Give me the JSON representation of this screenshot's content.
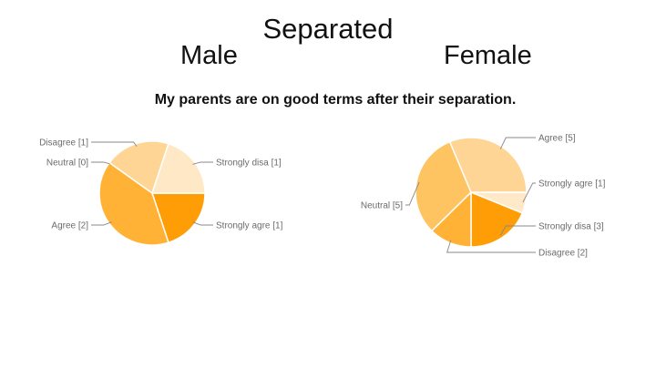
{
  "slide": {
    "title": "Separated",
    "male_label": "Male",
    "female_label": "Female",
    "question": "My parents are on good terms after their separation."
  },
  "chart_data": [
    {
      "type": "pie",
      "group": "Male",
      "slices": [
        {
          "label": "Strongly agre [1]",
          "category": "Strongly agre",
          "value": 1,
          "color": "#ff9d06"
        },
        {
          "label": "Agree [2]",
          "category": "Agree",
          "value": 2,
          "color": "#ffb235"
        },
        {
          "label": "Neutral [0]",
          "category": "Neutral",
          "value": 0,
          "color": "#ffc462"
        },
        {
          "label": "Disagree [1]",
          "category": "Disagree",
          "value": 1,
          "color": "#ffd596"
        },
        {
          "label": "Strongly disa [1]",
          "category": "Strongly disa",
          "value": 1,
          "color": "#ffe8c6"
        }
      ]
    },
    {
      "type": "pie",
      "group": "Female",
      "slices": [
        {
          "label": "Strongly agre [1]",
          "category": "Strongly agre",
          "value": 1,
          "color": "#ffe9c8"
        },
        {
          "label": "Strongly disa [3]",
          "category": "Strongly disa",
          "value": 3,
          "color": "#ff9d06"
        },
        {
          "label": "Disagree [2]",
          "category": "Disagree",
          "value": 2,
          "color": "#ffb235"
        },
        {
          "label": "Neutral [5]",
          "category": "Neutral",
          "value": 5,
          "color": "#ffc462"
        },
        {
          "label": "Agree [5]",
          "category": "Agree",
          "value": 5,
          "color": "#ffd596"
        }
      ]
    }
  ]
}
